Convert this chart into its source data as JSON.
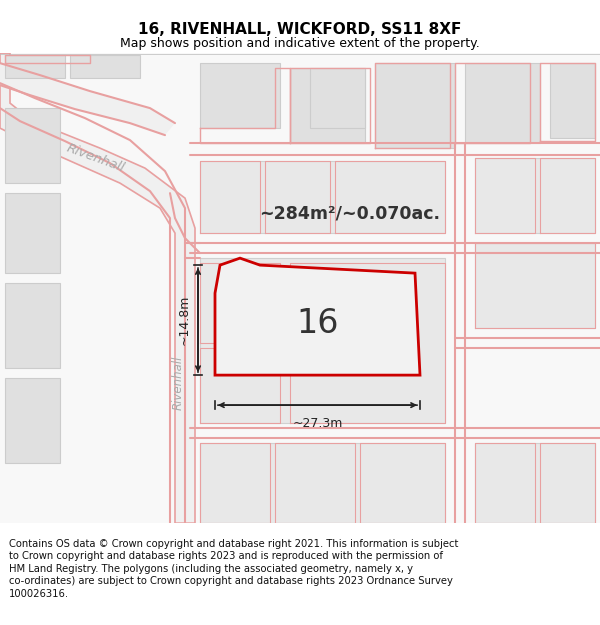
{
  "title": "16, RIVENHALL, WICKFORD, SS11 8XF",
  "subtitle": "Map shows position and indicative extent of the property.",
  "footer_lines": [
    "Contains OS data © Crown copyright and database right 2021. This information is subject",
    "to Crown copyright and database rights 2023 and is reproduced with the permission of",
    "HM Land Registry. The polygons (including the associated geometry, namely x, y",
    "co-ordinates) are subject to Crown copyright and database rights 2023 Ordnance Survey",
    "100026316."
  ],
  "map_bg": "#f8f8f8",
  "road_outline_color": "#e8a0a0",
  "block_fill": "#e0e0e0",
  "block_edge": "#cccccc",
  "road_center_fill": "#f8f8f8",
  "plot_fill": "#f0f0f0",
  "plot_border": "#cc0000",
  "plot_label": "16",
  "area_text": "~284m²/~0.070ac.",
  "dim_h": "~14.8m",
  "dim_w": "~27.3m",
  "street_label": "Rivenhall",
  "fig_width": 6.0,
  "fig_height": 6.25,
  "title_fontsize": 11,
  "subtitle_fontsize": 9,
  "footer_fontsize": 7.2
}
